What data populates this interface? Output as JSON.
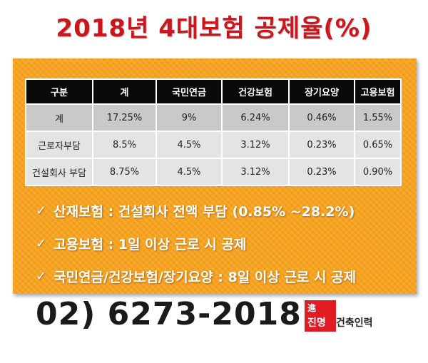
{
  "title": "2018년 4대보험 공제율(%)",
  "table": {
    "headers": [
      "구분",
      "계",
      "국민연금",
      "건강보험",
      "장기요양",
      "고용보험"
    ],
    "rows": [
      [
        "계",
        "17.25%",
        "9%",
        "6.24%",
        "0.46%",
        "1.55%"
      ],
      [
        "근로자부담",
        "8.5%",
        "4.5%",
        "3.12%",
        "0.23%",
        "0.65%"
      ],
      [
        "건설회사 부담",
        "8.75%",
        "4.5%",
        "3.12%",
        "0.23%",
        "0.90%"
      ]
    ]
  },
  "notes": [
    "산재보험 : 건설회사 전액 부담 (0.85% ~28.2%)",
    "고용보험 : 1일 이상 근로 시 공제",
    "국민연금/건강보험/장기요양 : 8일 이상 근로 시 공제"
  ],
  "check_symbol": "✓",
  "phone": "02) 6273-2018",
  "logo": {
    "top_char": "進",
    "bottom_chars": "진명",
    "company": "건축인력"
  },
  "colors": {
    "title_red": "#c8171e",
    "panel_orange": "#f7a21b",
    "header_black": "#0a0a0a",
    "logo_red": "#e21b23"
  }
}
